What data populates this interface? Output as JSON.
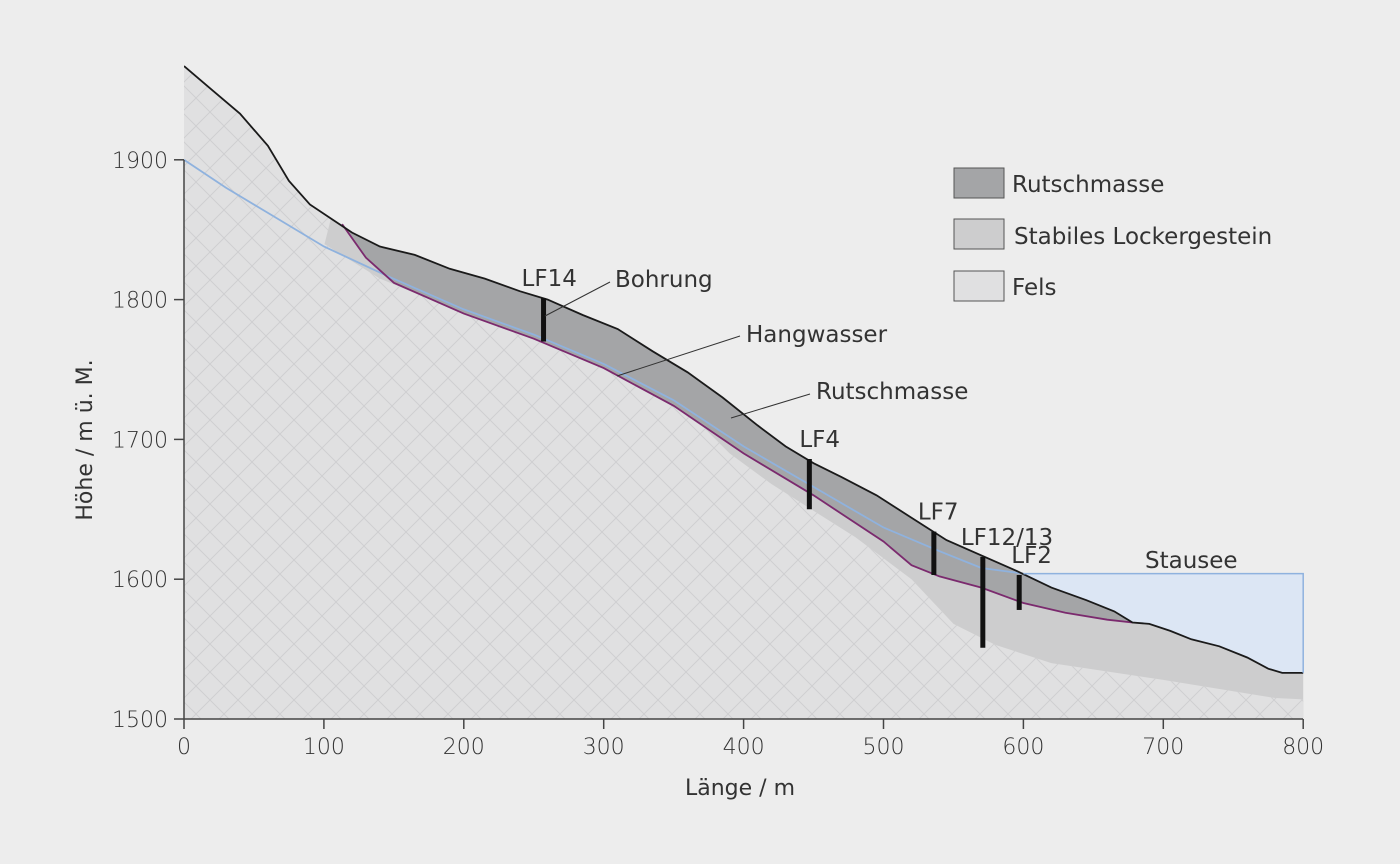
{
  "axes": {
    "x_label": "Länge / m",
    "y_label": "Höhe / m ü. M.",
    "x_ticks": [
      "0",
      "100",
      "200",
      "300",
      "400",
      "500",
      "600",
      "700",
      "800"
    ],
    "y_ticks": [
      "1500",
      "1600",
      "1700",
      "1800",
      "1900"
    ],
    "x_range": [
      0,
      800
    ],
    "y_range": [
      1500,
      1900
    ]
  },
  "legend": {
    "placement": "top-right",
    "items": [
      {
        "label": "Rutschmasse",
        "color": "#a4a5a7"
      },
      {
        "label": "Stabiles Lockergestein",
        "color": "#cdcdce"
      },
      {
        "label": "Fels",
        "color": "#e0e0e1"
      }
    ]
  },
  "annotations": {
    "bohrung": "Bohrung",
    "hangwasser": "Hangwasser",
    "rutschmasse": "Rutschmasse",
    "stausee": "Stausee"
  },
  "boreholes": [
    {
      "label": "LF14",
      "x": 257,
      "top": 1801,
      "bottom": 1770
    },
    {
      "label": "LF4",
      "x": 447,
      "top": 1686,
      "bottom": 1650
    },
    {
      "label": "LF7",
      "x": 536,
      "top": 1634,
      "bottom": 1603
    },
    {
      "label": "LF12/13",
      "x": 571,
      "top": 1616,
      "bottom": 1551
    },
    {
      "label": "LF2",
      "x": 597,
      "top": 1603,
      "bottom": 1578
    }
  ],
  "colors": {
    "rutschmasse": "#a4a5a7",
    "stabiles_lockergestein": "#cdcdce",
    "fels": "#e0e0e1",
    "stausee": "#dce6f4",
    "hangwasser_line": "#8fb2de",
    "gleitflaeche_line": "#7b2a6e",
    "terrain_line": "#1a1a1a"
  },
  "chart_data": {
    "type": "profile",
    "x_unit": "m",
    "y_unit": "m ü. M.",
    "terrain_surface": [
      [
        0,
        1967
      ],
      [
        20,
        1950
      ],
      [
        40,
        1933
      ],
      [
        60,
        1910
      ],
      [
        75,
        1885
      ],
      [
        90,
        1868
      ],
      [
        105,
        1858
      ],
      [
        120,
        1848
      ],
      [
        140,
        1838
      ],
      [
        165,
        1832
      ],
      [
        190,
        1822
      ],
      [
        215,
        1815
      ],
      [
        240,
        1806
      ],
      [
        260,
        1800
      ],
      [
        285,
        1789
      ],
      [
        310,
        1779
      ],
      [
        335,
        1763
      ],
      [
        360,
        1748
      ],
      [
        385,
        1730
      ],
      [
        410,
        1710
      ],
      [
        430,
        1695
      ],
      [
        450,
        1683
      ],
      [
        470,
        1673
      ],
      [
        495,
        1660
      ],
      [
        520,
        1644
      ],
      [
        545,
        1628
      ],
      [
        570,
        1617
      ],
      [
        595,
        1606
      ],
      [
        620,
        1594
      ],
      [
        645,
        1585
      ],
      [
        665,
        1577
      ],
      [
        678,
        1569
      ],
      [
        690,
        1568
      ],
      [
        705,
        1563
      ],
      [
        720,
        1557
      ],
      [
        740,
        1552
      ],
      [
        760,
        1544
      ],
      [
        775,
        1536
      ],
      [
        785,
        1533
      ],
      [
        800,
        1533
      ]
    ],
    "sliding_surface": [
      [
        113,
        1854
      ],
      [
        130,
        1830
      ],
      [
        150,
        1812
      ],
      [
        200,
        1790
      ],
      [
        250,
        1772
      ],
      [
        300,
        1751
      ],
      [
        350,
        1724
      ],
      [
        400,
        1690
      ],
      [
        450,
        1660
      ],
      [
        500,
        1627
      ],
      [
        520,
        1610
      ],
      [
        540,
        1602
      ],
      [
        570,
        1594
      ],
      [
        600,
        1583
      ],
      [
        630,
        1576
      ],
      [
        660,
        1571
      ],
      [
        678,
        1569
      ]
    ],
    "rock_top": [
      [
        0,
        1500
      ],
      [
        0,
        1900
      ],
      [
        50,
        1870
      ],
      [
        100,
        1840
      ],
      [
        140,
        1815
      ],
      [
        200,
        1790
      ],
      [
        260,
        1770
      ],
      [
        300,
        1755
      ],
      [
        340,
        1735
      ],
      [
        360,
        1720
      ],
      [
        390,
        1690
      ],
      [
        420,
        1668
      ],
      [
        450,
        1649
      ],
      [
        480,
        1630
      ],
      [
        520,
        1600
      ],
      [
        550,
        1568
      ],
      [
        580,
        1553
      ],
      [
        620,
        1540
      ],
      [
        700,
        1528
      ],
      [
        780,
        1515
      ],
      [
        800,
        1514
      ],
      [
        800,
        1500
      ]
    ],
    "groundwater": [
      [
        0,
        1900
      ],
      [
        30,
        1880
      ],
      [
        60,
        1862
      ],
      [
        100,
        1838
      ],
      [
        145,
        1817
      ],
      [
        200,
        1793
      ],
      [
        250,
        1775
      ],
      [
        300,
        1754
      ],
      [
        350,
        1728
      ],
      [
        400,
        1695
      ],
      [
        450,
        1666
      ],
      [
        500,
        1637
      ],
      [
        540,
        1620
      ],
      [
        570,
        1608
      ],
      [
        600,
        1604
      ]
    ],
    "reservoir_level": 1604,
    "reservoir_x_start": 600
  }
}
